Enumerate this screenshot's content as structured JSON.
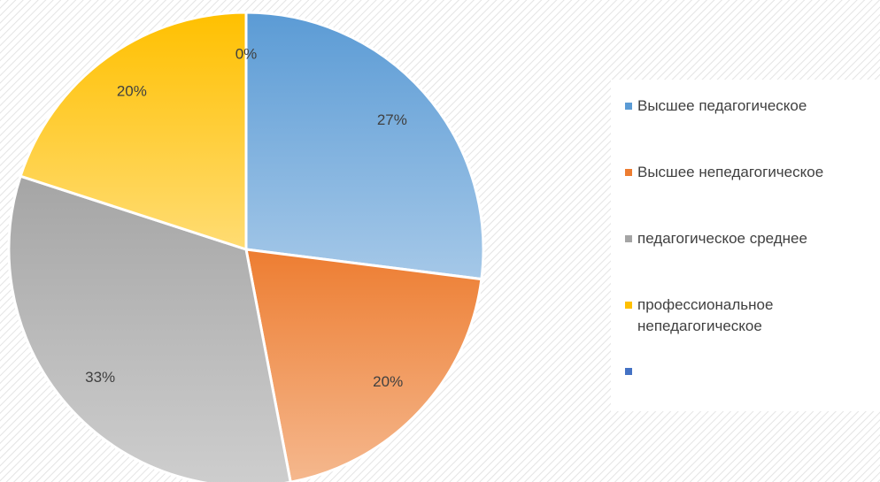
{
  "chart_data": {
    "type": "pie",
    "categories": [
      "Высшее педагогическое",
      "Высшее непедагогическое",
      "педагогическое среднее",
      "профессиональное непедагогическое",
      null
    ],
    "values": [
      27,
      20,
      33,
      20,
      0
    ],
    "value_labels": [
      "27%",
      "20%",
      "33%",
      "20%",
      "0%"
    ],
    "colors": [
      "#5b9bd5",
      "#ed7d31",
      "#a5a5a5",
      "#ffc000",
      "#4472c4"
    ],
    "legend": "right"
  }
}
